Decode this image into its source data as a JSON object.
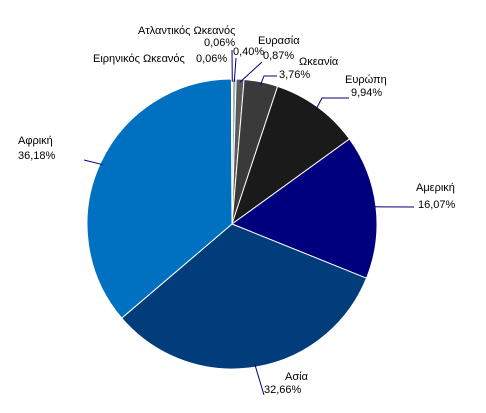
{
  "chart_data": {
    "type": "pie",
    "start_angle_deg": 0,
    "direction": "clockwise",
    "slices": [
      {
        "label": "Ατλαντικός Ωκεανός",
        "value": 0.06,
        "value_label": "0,06%",
        "color": "#7f7f7f"
      },
      {
        "label": "",
        "value": 0.4,
        "value_label": "0,40%",
        "color": "#b2b2b2"
      },
      {
        "label": "Ευρασία",
        "value": 0.87,
        "value_label": "0,87%",
        "color": "#5a5a5a"
      },
      {
        "label": "Ωκεανία",
        "value": 3.76,
        "value_label": "3,76%",
        "color": "#3a3a3a"
      },
      {
        "label": "Ευρώπη",
        "value": 9.94,
        "value_label": "9,94%",
        "color": "#1a1a1a"
      },
      {
        "label": "Αμερική",
        "value": 16.07,
        "value_label": "16,07%",
        "color": "#00007f"
      },
      {
        "label": "Ασία",
        "value": 32.66,
        "value_label": "32,66%",
        "color": "#003d7a"
      },
      {
        "label": "Αφρική",
        "value": 36.18,
        "value_label": "36,18%",
        "color": "#0070c0"
      },
      {
        "label": "Ειρηνικός Ωκεανός",
        "value": 0.06,
        "value_label": "0,06%",
        "color": "#4c4c4c"
      }
    ],
    "leader_color": "#00007f",
    "edge_color": "#ffffff"
  }
}
